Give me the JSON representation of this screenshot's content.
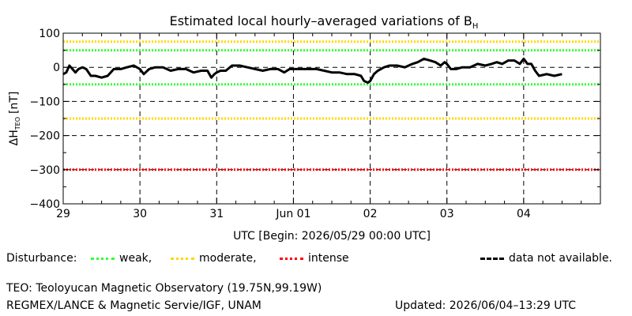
{
  "chart_data": {
    "type": "line",
    "title": "Estimated local hourly–averaged variations of B",
    "title_subscript": "H",
    "ylabel": "ΔH",
    "ylabel_subscript": "TEO",
    "ylabel_unit": "[nT]",
    "xlabel": "UTC [Begin: 2026/05/29 00:00 UTC]",
    "ylim": [
      -400,
      100
    ],
    "xlim": [
      0,
      7
    ],
    "x_unit": "days since 2026/05/29 00:00 UTC",
    "y_ticks": [
      "100",
      "0",
      "−100",
      "−200",
      "−300",
      "−400"
    ],
    "y_tick_values": [
      100,
      0,
      -100,
      -200,
      -300,
      -400
    ],
    "x_tick_labels": [
      "29",
      "30",
      "31",
      "Jun 01",
      "02",
      "03",
      "04"
    ],
    "x_tick_values": [
      0,
      1,
      2,
      3,
      4,
      5,
      6
    ],
    "reference_lines": [
      {
        "name": "weak",
        "values": [
          50,
          -50
        ],
        "color": "#33ff33"
      },
      {
        "name": "moderate",
        "values": [
          75,
          -150
        ],
        "color": "#ffd700"
      },
      {
        "name": "intense",
        "values": [
          -300
        ],
        "color": "#ff0000"
      }
    ],
    "series": [
      {
        "color": "#000000",
        "x": [
          0.0,
          0.04,
          0.08,
          0.12,
          0.16,
          0.2,
          0.25,
          0.3,
          0.36,
          0.42,
          0.5,
          0.58,
          0.66,
          0.75,
          0.83,
          0.92,
          1.0,
          1.05,
          1.12,
          1.2,
          1.3,
          1.4,
          1.5,
          1.6,
          1.7,
          1.8,
          1.88,
          1.93,
          1.97,
          2.0,
          2.05,
          2.12,
          2.2,
          2.3,
          2.4,
          2.5,
          2.6,
          2.7,
          2.8,
          2.88,
          2.95,
          3.0,
          3.1,
          3.2,
          3.3,
          3.4,
          3.5,
          3.6,
          3.7,
          3.8,
          3.88,
          3.92,
          3.97,
          4.0,
          4.05,
          4.1,
          4.18,
          4.25,
          4.35,
          4.45,
          4.55,
          4.62,
          4.7,
          4.78,
          4.85,
          4.92,
          4.97,
          5.0,
          5.05,
          5.12,
          5.2,
          5.3,
          5.4,
          5.5,
          5.58,
          5.65,
          5.72,
          5.8,
          5.88,
          5.95,
          6.0,
          6.05,
          6.1,
          6.15,
          6.2,
          6.3,
          6.4,
          6.5
        ],
        "y": [
          -20,
          -15,
          5,
          -5,
          -15,
          -5,
          0,
          -5,
          -25,
          -25,
          -30,
          -25,
          -5,
          -5,
          0,
          5,
          -5,
          -20,
          -5,
          0,
          0,
          -10,
          -5,
          -5,
          -15,
          -10,
          -10,
          -30,
          -20,
          -15,
          -10,
          -10,
          5,
          5,
          0,
          -5,
          -10,
          -5,
          -5,
          -15,
          -5,
          -5,
          -5,
          -5,
          -5,
          -10,
          -15,
          -15,
          -20,
          -20,
          -25,
          -40,
          -45,
          -40,
          -20,
          -10,
          0,
          5,
          5,
          0,
          10,
          15,
          25,
          20,
          15,
          5,
          15,
          10,
          -5,
          -5,
          0,
          0,
          10,
          5,
          10,
          15,
          10,
          20,
          20,
          10,
          25,
          10,
          10,
          -10,
          -25,
          -20,
          -25,
          -20
        ]
      }
    ]
  },
  "legend": {
    "disturbance_label": "Disturbance:",
    "weak_label": "weak,",
    "moderate_label": "moderate,",
    "intense_label": "intense",
    "na_label": "data not available.",
    "weak_color": "#33ff33",
    "moderate_color": "#ffd700",
    "intense_color": "#ff0000",
    "na_color": "#000000"
  },
  "footer": {
    "observatory": "TEO: Teoloyucan Magnetic Observatory (19.75N,99.19W)",
    "institution": "REGMEX/LANCE & Magnetic Servie/IGF, UNAM",
    "updated": "Updated: 2026/06/04–13:29 UTC"
  }
}
